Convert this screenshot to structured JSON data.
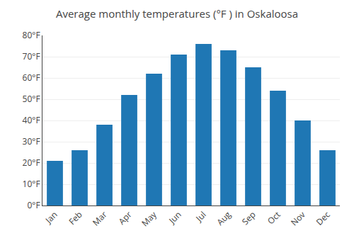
{
  "chart_data": {
    "type": "bar",
    "title": "Average monthly temperatures (°F ) in Oskaloosa",
    "categories": [
      "Jan",
      "Feb",
      "Mar",
      "Apr",
      "May",
      "Jun",
      "Jul",
      "Aug",
      "Sep",
      "Oct",
      "Nov",
      "Dec"
    ],
    "values": [
      21,
      26,
      38,
      52,
      62,
      71,
      76,
      73,
      65,
      54,
      40,
      26
    ],
    "ylim": [
      0,
      80
    ],
    "yticks": [
      {
        "value": 0,
        "label": "0°F"
      },
      {
        "value": 10,
        "label": "10°F"
      },
      {
        "value": 20,
        "label": "20°F"
      },
      {
        "value": 30,
        "label": "30°F"
      },
      {
        "value": 40,
        "label": "40°F"
      },
      {
        "value": 50,
        "label": "50°F"
      },
      {
        "value": 60,
        "label": "60°F"
      },
      {
        "value": 70,
        "label": "70°F"
      },
      {
        "value": 80,
        "label": "80°F"
      }
    ],
    "grid": true
  }
}
